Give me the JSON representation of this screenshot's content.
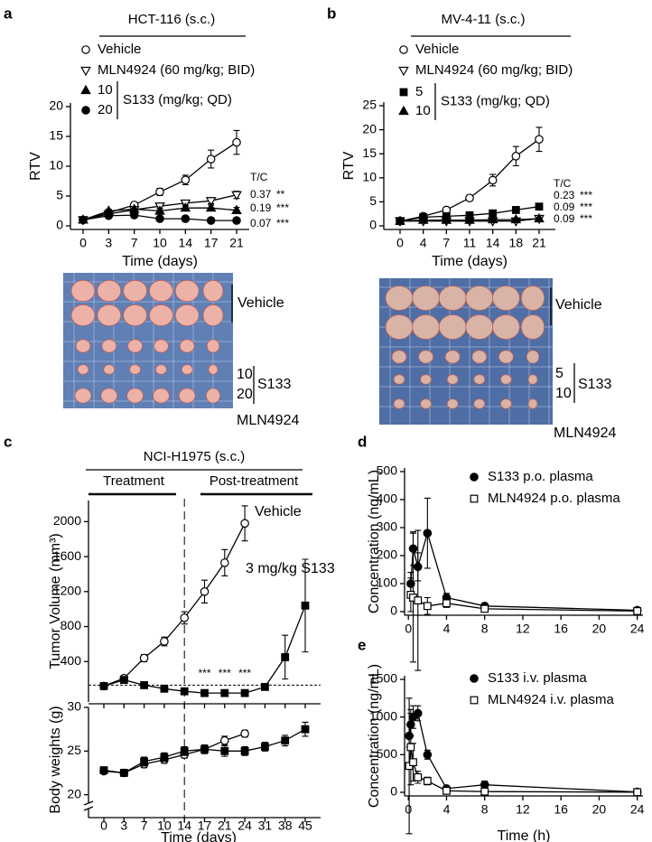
{
  "chart_data": [
    {
      "type": "line",
      "panel": "a",
      "title": "HCT-116 (s.c.)",
      "xlabel": "Time (days)",
      "ylabel": "RTV",
      "categories": [
        0,
        3,
        7,
        10,
        14,
        17,
        21
      ],
      "ylim": [
        0,
        20
      ],
      "yticks": [
        0,
        5,
        10,
        15,
        20
      ],
      "legend_group": "S133 (mg/kg; QD)",
      "series": [
        {
          "name": "Vehicle",
          "marker": "circle-open",
          "color": "#000000",
          "values": [
            1,
            2.2,
            3.5,
            5.7,
            7.7,
            11.2,
            14
          ],
          "errors": [
            0.2,
            0.3,
            0.4,
            0.6,
            0.8,
            1.5,
            2
          ]
        },
        {
          "name": "MLN4924 (60 mg/kg; BID)",
          "marker": "triangle-down-open",
          "color": "#000000",
          "values": [
            1,
            2,
            2.7,
            3.3,
            3.8,
            4.2,
            5.2
          ],
          "errors": [
            0.2,
            0.3,
            0.4,
            0.4,
            0.5,
            0.5,
            0.6
          ]
        },
        {
          "name": "10",
          "marker": "triangle",
          "color": "#000000",
          "values": [
            1,
            2.5,
            2.8,
            2.5,
            3,
            3,
            2.6
          ],
          "errors": [
            0.2,
            0.3,
            0.4,
            0.4,
            0.5,
            0.5,
            0.5
          ]
        },
        {
          "name": "20",
          "marker": "circle",
          "color": "#000000",
          "values": [
            1,
            1.7,
            1.8,
            1.2,
            1.2,
            0.9,
            0.9
          ],
          "errors": [
            0.2,
            0.2,
            0.3,
            0.2,
            0.2,
            0.2,
            0.2
          ]
        }
      ],
      "tc_label": "T/C",
      "tc_values": [
        0.37,
        0.19,
        0.07
      ],
      "tc_significance": [
        "**",
        "***",
        "***"
      ],
      "photo_labels": {
        "vehicle": "Vehicle",
        "low": "10",
        "high": "20",
        "compound": "S133",
        "control": "MLN4924"
      }
    },
    {
      "type": "line",
      "panel": "b",
      "title": "MV-4-11 (s.c.)",
      "xlabel": "Time (days)",
      "ylabel": "RTV",
      "categories": [
        0,
        4,
        7,
        11,
        14,
        18,
        21
      ],
      "ylim": [
        0,
        25
      ],
      "yticks": [
        0,
        5,
        10,
        15,
        20,
        25
      ],
      "legend_group": "S133 (mg/kg; QD)",
      "series": [
        {
          "name": "Vehicle",
          "marker": "circle-open",
          "color": "#000000",
          "values": [
            1,
            2,
            3.3,
            5.8,
            9.5,
            14.5,
            18
          ],
          "errors": [
            0.2,
            0.3,
            0.4,
            0.6,
            1.2,
            2,
            2.5
          ]
        },
        {
          "name": "MLN4924 (60 mg/kg; BID)",
          "marker": "triangle-down-open",
          "color": "#000000",
          "values": [
            1,
            1,
            1,
            1,
            1,
            1,
            1.5
          ],
          "errors": [
            0.1,
            0.1,
            0.2,
            0.2,
            0.2,
            0.2,
            0.3
          ]
        },
        {
          "name": "5",
          "marker": "square",
          "color": "#000000",
          "values": [
            1,
            1.8,
            2,
            2.2,
            2.6,
            3.3,
            4
          ],
          "errors": [
            0.1,
            0.2,
            0.3,
            0.3,
            0.4,
            0.5,
            0.6
          ]
        },
        {
          "name": "10",
          "marker": "triangle",
          "color": "#000000",
          "values": [
            1,
            1.2,
            1.2,
            1.2,
            1.3,
            1.3,
            1.5
          ],
          "errors": [
            0.1,
            0.1,
            0.2,
            0.2,
            0.2,
            0.2,
            0.2
          ]
        }
      ],
      "tc_label": "T/C",
      "tc_values": [
        0.23,
        0.09,
        0.09
      ],
      "tc_significance": [
        "***",
        "***",
        "***"
      ],
      "photo_labels": {
        "vehicle": "Vehicle",
        "low": "5",
        "high": "10",
        "compound": "S133",
        "control": "MLN4924"
      }
    },
    {
      "type": "line-split",
      "panel": "c",
      "title": "NCI-H1975 (s.c.)",
      "phases": [
        "Treatment",
        "Post-treatment"
      ],
      "xlabel": "Time (days)",
      "categories": [
        0,
        3,
        7,
        10,
        14,
        17,
        21,
        24,
        31,
        38,
        45
      ],
      "divider": 14,
      "subplots": [
        {
          "ylabel": "Tumor Volume (mm³)",
          "ylim": [
            0,
            2200
          ],
          "yticks": [
            400,
            800,
            1200,
            1600,
            2000
          ],
          "reference_line": 130,
          "annotations": [
            "***",
            "***",
            "***"
          ],
          "series": [
            {
              "name": "Vehicle",
              "marker": "circle-open",
              "color": "#000000",
              "values": [
                120,
                210,
                440,
                630,
                900,
                1200,
                1530,
                1980,
                null,
                null,
                null
              ],
              "errors": [
                15,
                25,
                40,
                50,
                70,
                130,
                150,
                200,
                null,
                null,
                null
              ]
            },
            {
              "name": "3 mg/kg S133",
              "marker": "square",
              "color": "#000000",
              "values": [
                120,
                190,
                130,
                90,
                60,
                40,
                40,
                40,
                110,
                450,
                1040
              ],
              "errors": [
                15,
                20,
                15,
                10,
                10,
                8,
                8,
                8,
                30,
                250,
                530
              ]
            }
          ]
        },
        {
          "ylabel": "Body weights (g)",
          "ylim": [
            18,
            30
          ],
          "yticks": [
            20,
            25,
            30
          ],
          "series": [
            {
              "marker": "circle-open",
              "color": "#000000",
              "values": [
                22.7,
                22.5,
                23.5,
                24,
                24.6,
                25.2,
                26.2,
                27,
                null,
                null,
                null
              ],
              "errors": [
                0.3,
                0.3,
                0.4,
                0.4,
                0.4,
                0.4,
                0.5,
                0.4,
                null,
                null,
                null
              ]
            },
            {
              "marker": "square",
              "color": "#000000",
              "values": [
                22.8,
                22.5,
                23.8,
                24.3,
                25,
                25.2,
                25,
                25,
                25.5,
                26.2,
                27.5
              ],
              "errors": [
                0.3,
                0.3,
                0.5,
                0.5,
                0.5,
                0.5,
                0.6,
                0.5,
                0.5,
                0.6,
                0.8
              ]
            }
          ]
        }
      ]
    },
    {
      "type": "line",
      "panel": "d",
      "ylabel": "Concentration (ng/mL)",
      "xlim": [
        -0.4,
        24.6
      ],
      "xticks": [
        0,
        4,
        8,
        12,
        16,
        20,
        24
      ],
      "ylim": [
        0,
        500
      ],
      "yticks": [
        0,
        100,
        200,
        300,
        400,
        500
      ],
      "series": [
        {
          "name": "S133 p.o. plasma",
          "marker": "circle",
          "color": "#000000",
          "x": [
            0.25,
            0.5,
            1,
            2,
            4,
            8,
            24
          ],
          "values": [
            100,
            225,
            160,
            280,
            50,
            20,
            5
          ],
          "errors": [
            40,
            60,
            50,
            125,
            15,
            6,
            2
          ]
        },
        {
          "name": "MLN4924 p.o. plasma",
          "marker": "square-open",
          "color": "#000000",
          "x": [
            0.25,
            0.5,
            1,
            2,
            4,
            8,
            24
          ],
          "values": [
            60,
            50,
            40,
            20,
            30,
            10,
            2
          ],
          "errors": [
            60,
            230,
            250,
            30,
            15,
            5,
            1
          ]
        }
      ]
    },
    {
      "type": "line",
      "panel": "e",
      "xlabel": "Time (h)",
      "ylabel": "Concentration (ng/mL)",
      "xlim": [
        -0.4,
        24.6
      ],
      "xticks": [
        0,
        4,
        8,
        12,
        16,
        20,
        24
      ],
      "ylim": [
        0,
        1500
      ],
      "yticks": [
        0,
        500,
        1000,
        1500
      ],
      "series": [
        {
          "name": "S133 i.v. plasma",
          "marker": "circle",
          "color": "#000000",
          "x": [
            0.083,
            0.25,
            0.5,
            1,
            2,
            4,
            8,
            24
          ],
          "values": [
            750,
            900,
            1000,
            1050,
            500,
            50,
            100,
            5
          ],
          "errors": [
            150,
            150,
            150,
            100,
            60,
            15,
            50,
            3
          ]
        },
        {
          "name": "MLN4924 i.v. plasma",
          "marker": "square-open",
          "color": "#000000",
          "x": [
            0.083,
            0.25,
            0.5,
            1,
            2,
            4,
            8,
            24
          ],
          "values": [
            350,
            600,
            400,
            200,
            150,
            20,
            10,
            2
          ],
          "errors": [
            900,
            500,
            250,
            80,
            50,
            10,
            5,
            1
          ]
        }
      ]
    }
  ]
}
